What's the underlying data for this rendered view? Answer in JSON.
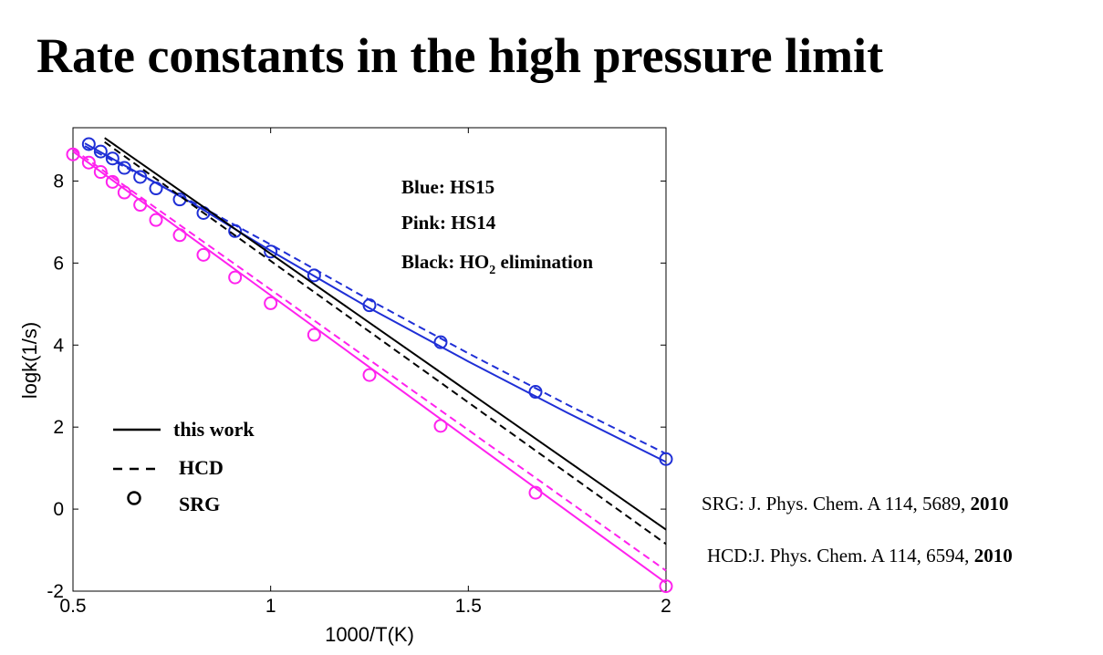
{
  "slide": {
    "title": "Rate constants in the high pressure limit"
  },
  "colors": {
    "blue": "#1f2fd6",
    "pink": "#ff22ee",
    "black": "#000000"
  },
  "chart_data": {
    "type": "line",
    "xlabel": "1000/T(K)",
    "ylabel": "logk(1/s)",
    "xlim": [
      0.5,
      2
    ],
    "ylim": [
      -2,
      9.3
    ],
    "xticks": [
      0.5,
      1,
      1.5,
      2
    ],
    "xtick_labels": [
      "0.5",
      "1",
      "1.5",
      "2"
    ],
    "yticks": [
      -2,
      0,
      2,
      4,
      6,
      8
    ],
    "ytick_labels": [
      "-2",
      "0",
      "2",
      "4",
      "6",
      "8"
    ],
    "grid": false,
    "color_notes": [
      {
        "label": "Blue: HS15"
      },
      {
        "label": "Pink: HS14"
      },
      {
        "label": "Black: HO",
        "sub": "2",
        "rest": " elimination"
      }
    ],
    "legend": [
      {
        "style": "solid",
        "label": "this work"
      },
      {
        "style": "dashed",
        "label": "HCD"
      },
      {
        "style": "circle",
        "label": "SRG"
      }
    ],
    "series": [
      {
        "group": "HS15",
        "method": "this work",
        "style": "solid",
        "color": "#1f2fd6",
        "x": [
          0.53,
          0.8,
          1.0,
          1.25,
          1.5,
          1.75,
          2.0
        ],
        "y": [
          8.92,
          7.47,
          6.3,
          4.9,
          3.6,
          2.35,
          1.15
        ]
      },
      {
        "group": "HS15",
        "method": "HCD",
        "style": "dashed",
        "color": "#1f2fd6",
        "x": [
          0.53,
          0.8,
          1.0,
          1.25,
          1.5,
          1.75,
          2.0
        ],
        "y": [
          8.85,
          7.5,
          6.45,
          5.1,
          3.8,
          2.55,
          1.35
        ]
      },
      {
        "group": "HS15",
        "method": "SRG",
        "style": "circle",
        "color": "#1f2fd6",
        "x": [
          0.54,
          0.57,
          0.6,
          0.63,
          0.67,
          0.71,
          0.77,
          0.83,
          0.91,
          1.0,
          1.11,
          1.25,
          1.43,
          1.67,
          2.0
        ],
        "y": [
          8.9,
          8.72,
          8.55,
          8.32,
          8.1,
          7.82,
          7.55,
          7.22,
          6.78,
          6.28,
          5.7,
          4.97,
          4.07,
          2.86,
          1.22
        ]
      },
      {
        "group": "HS14",
        "method": "this work",
        "style": "solid",
        "color": "#ff22ee",
        "x": [
          0.5,
          2.0
        ],
        "y": [
          8.72,
          -1.8
        ]
      },
      {
        "group": "HS14",
        "method": "HCD",
        "style": "dashed",
        "color": "#ff22ee",
        "x": [
          0.5,
          2.0
        ],
        "y": [
          8.78,
          -1.5
        ]
      },
      {
        "group": "HS14",
        "method": "SRG",
        "style": "circle",
        "color": "#ff22ee",
        "x": [
          0.5,
          0.54,
          0.57,
          0.6,
          0.63,
          0.67,
          0.71,
          0.77,
          0.83,
          0.91,
          1.0,
          1.11,
          1.25,
          1.43,
          1.67,
          2.0
        ],
        "y": [
          8.65,
          8.45,
          8.22,
          7.98,
          7.72,
          7.42,
          7.05,
          6.68,
          6.2,
          5.65,
          5.02,
          4.25,
          3.27,
          2.03,
          0.4,
          -1.88
        ]
      },
      {
        "group": "HO2 elimination",
        "method": "this work",
        "style": "solid",
        "color": "#000000",
        "x": [
          0.58,
          2.0
        ],
        "y": [
          9.05,
          -0.5
        ]
      },
      {
        "group": "HO2 elimination",
        "method": "HCD",
        "style": "dashed",
        "color": "#000000",
        "x": [
          0.58,
          2.0
        ],
        "y": [
          8.95,
          -0.85
        ]
      }
    ]
  },
  "references": [
    {
      "text": "SRG: J. Phys. Chem. A 114, 5689, ",
      "year": "2010"
    },
    {
      "text": "HCD:J. Phys. Chem. A 114, 6594, ",
      "year": "2010"
    }
  ]
}
